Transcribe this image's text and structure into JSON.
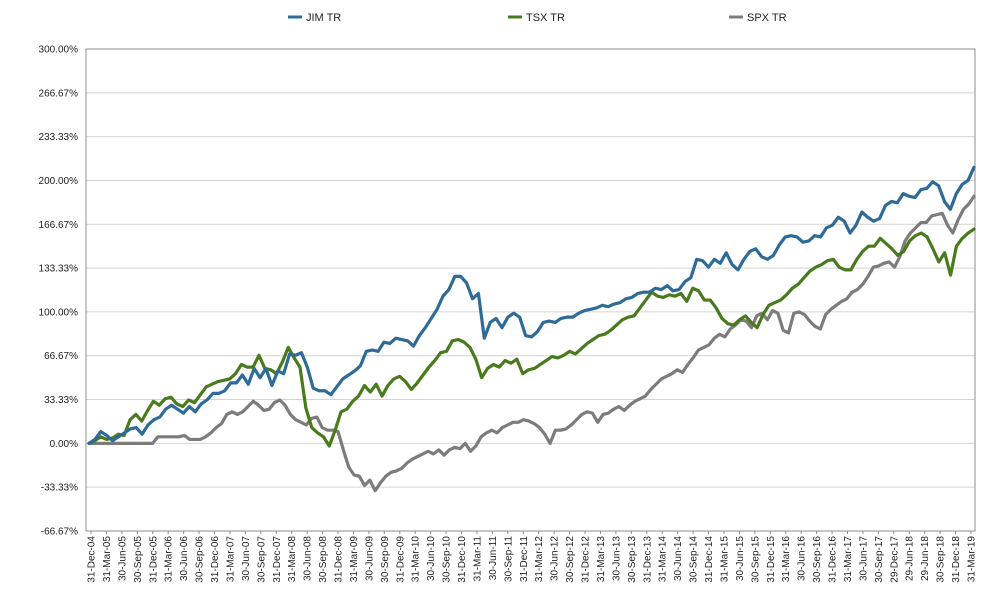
{
  "chart_data": {
    "type": "line",
    "title": "",
    "xlabel": "",
    "ylabel": "",
    "ylim": [
      -66.67,
      300.0
    ],
    "grid": "horizontal",
    "legend_position": "top",
    "y_tick_labels": [
      "300.00%",
      "266.67%",
      "233.33%",
      "200.00%",
      "166.67%",
      "133.33%",
      "100.00%",
      "66.67%",
      "33.33%",
      "0.00%",
      "-33.33%",
      "-66.67%"
    ],
    "y_tick_values": [
      300,
      266.67,
      233.33,
      200,
      166.67,
      133.33,
      100,
      66.67,
      33.33,
      0,
      -33.33,
      -66.67
    ],
    "x_tick_labels": [
      "31-Dec-04",
      "31-Mar-05",
      "30-Jun-05",
      "30-Sep-05",
      "31-Dec-05",
      "31-Mar-06",
      "30-Jun-06",
      "30-Sep-06",
      "31-Dec-06",
      "31-Mar-07",
      "30-Jun-07",
      "30-Sep-07",
      "31-Dec-07",
      "31-Mar-08",
      "30-Jun-08",
      "30-Sep-08",
      "31-Dec-08",
      "31-Mar-09",
      "30-Jun-09",
      "30-Sep-09",
      "31-Dec-09",
      "31-Mar-10",
      "30-Jun-10",
      "30-Sep-10",
      "31-Dec-10",
      "31-Mar-11",
      "30-Jun-11",
      "30-Sep-11",
      "31-Dec-11",
      "31-Mar-12",
      "30-Jun-12",
      "30-Sep-12",
      "31-Dec-12",
      "31-Mar-13",
      "30-Jun-13",
      "30-Sep-13",
      "31-Dec-13",
      "31-Mar-14",
      "30-Jun-14",
      "30-Sep-14",
      "31-Dec-14",
      "31-Mar-15",
      "30-Jun-15",
      "30-Sep-15",
      "31-Dec-15",
      "31-Mar-16",
      "30-Jun-16",
      "30-Sep-16",
      "31-Dec-16",
      "31-Mar-17",
      "30-Jun-17",
      "30-Sep-17",
      "29-Dec-17",
      "29-Jun-18",
      "29-Jun-18",
      "30-Sep-18",
      "31-Dec-18",
      "31-Mar-19"
    ],
    "series": [
      {
        "name": "JIM TR",
        "color": "#2e6b96",
        "values": [
          0,
          3,
          9,
          6,
          2,
          5,
          8,
          11,
          12,
          7,
          14,
          18,
          20,
          26,
          29,
          26,
          23,
          28,
          24,
          30,
          33,
          38,
          38,
          40,
          46,
          46,
          52,
          45,
          57,
          50,
          57,
          44,
          55,
          53,
          68,
          67,
          69,
          58,
          42,
          40,
          40,
          37,
          43,
          49,
          52,
          55,
          59,
          70,
          71,
          70,
          77,
          76,
          80,
          79,
          78,
          74,
          82,
          88,
          95,
          102,
          112,
          117,
          127,
          127,
          122,
          110,
          114,
          80,
          92,
          95,
          88,
          96,
          99,
          96,
          82,
          81,
          85,
          92,
          93,
          92,
          95,
          96,
          96,
          99,
          101,
          102,
          103,
          105,
          104,
          106,
          107,
          110,
          111,
          114,
          115,
          115,
          118,
          117,
          120,
          116,
          117,
          123,
          126,
          140,
          139,
          134,
          140,
          137,
          145,
          136,
          132,
          140,
          146,
          148,
          142,
          140,
          143,
          151,
          157,
          158,
          157,
          153,
          154,
          158,
          157,
          164,
          166,
          172,
          169,
          160,
          166,
          176,
          172,
          169,
          171,
          181,
          184,
          183,
          190,
          188,
          187,
          193,
          194,
          199,
          196,
          184,
          178,
          190,
          197,
          200,
          210
        ]
      },
      {
        "name": "TSX TR",
        "color": "#4a7a1e",
        "values": [
          0,
          2,
          5,
          3,
          4,
          7,
          6,
          18,
          22,
          17,
          25,
          32,
          29,
          34,
          35,
          30,
          28,
          33,
          31,
          37,
          43,
          45,
          47,
          48,
          49,
          53,
          60,
          58,
          58,
          67,
          57,
          56,
          53,
          62,
          73,
          65,
          58,
          27,
          12,
          8,
          5,
          -2,
          10,
          24,
          26,
          32,
          36,
          44,
          39,
          45,
          36,
          44,
          49,
          51,
          47,
          41,
          46,
          52,
          58,
          63,
          69,
          70,
          78,
          79,
          77,
          73,
          64,
          50,
          57,
          60,
          58,
          63,
          61,
          64,
          53,
          56,
          57,
          60,
          63,
          66,
          65,
          67,
          70,
          68,
          72,
          76,
          79,
          82,
          83,
          86,
          90,
          94,
          96,
          97,
          103,
          109,
          115,
          112,
          111,
          113,
          112,
          114,
          108,
          118,
          116,
          109,
          109,
          103,
          95,
          91,
          90,
          94,
          97,
          92,
          88,
          98,
          105,
          107,
          109,
          113,
          118,
          121,
          126,
          131,
          134,
          136,
          139,
          140,
          134,
          132,
          132,
          140,
          146,
          150,
          150,
          156,
          152,
          148,
          143,
          146,
          154,
          158,
          160,
          157,
          148,
          138,
          145,
          128,
          150,
          156,
          160,
          163
        ]
      },
      {
        "name": "SPX TR",
        "color": "#7c7c7c",
        "values": [
          0,
          0,
          0,
          0,
          0,
          0,
          0,
          0,
          0,
          0,
          0,
          0,
          0,
          5,
          5,
          5,
          5,
          5,
          6,
          3,
          3,
          3,
          5,
          8,
          12,
          15,
          22,
          24,
          22,
          24,
          28,
          32,
          29,
          25,
          26,
          31,
          33,
          29,
          22,
          18,
          16,
          14,
          19,
          20,
          12,
          10,
          10,
          9,
          -5,
          -18,
          -24,
          -25,
          -32,
          -28,
          -36,
          -30,
          -25,
          -22,
          -21,
          -19,
          -15,
          -12,
          -10,
          -8,
          -6,
          -8,
          -5,
          -9,
          -5,
          -3,
          -4,
          0,
          -6,
          -2,
          5,
          8,
          10,
          8,
          12,
          14,
          16,
          16,
          18,
          17,
          15,
          12,
          7,
          0,
          10,
          10,
          11,
          14,
          18,
          22,
          24,
          23,
          16,
          22,
          23,
          26,
          28,
          25,
          29,
          32,
          34,
          36,
          41,
          45,
          49,
          51,
          53,
          56,
          54,
          60,
          65,
          71,
          73,
          75,
          80,
          83,
          81,
          87,
          90,
          94,
          93,
          88,
          97,
          99,
          94,
          101,
          99,
          86,
          84,
          99,
          100,
          98,
          93,
          89,
          87,
          98,
          102,
          105,
          108,
          110,
          115,
          117,
          121,
          127,
          134,
          135,
          137,
          138,
          134,
          142,
          154,
          160,
          164,
          168,
          168,
          173,
          174,
          175,
          166,
          160,
          170,
          178,
          182,
          188
        ]
      }
    ]
  }
}
